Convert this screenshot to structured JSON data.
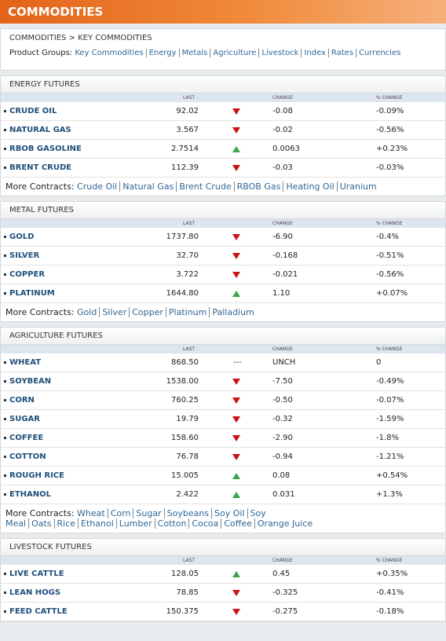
{
  "header": {
    "title": "COMMODITIES"
  },
  "breadcrumb": "COMMODITIES > KEY COMMODITIES",
  "product_groups": {
    "label": "Product Groups:",
    "links": [
      "Key Commodities",
      "Energy",
      "Metals",
      "Agriculture",
      "Livestock",
      "Index",
      "Rates",
      "Currencies"
    ]
  },
  "sections": [
    {
      "title": "ENERGY FUTURES",
      "columns": [
        "LAST",
        "CHANGE",
        "% CHANGE"
      ],
      "rows": [
        {
          "name": "CRUDE OIL",
          "last": "92.02",
          "arrow": "down",
          "change": "-0.08",
          "pct": "-0.09%"
        },
        {
          "name": "NATURAL GAS",
          "last": "3.567",
          "arrow": "down",
          "change": "-0.02",
          "pct": "-0.56%"
        },
        {
          "name": "RBOB GASOLINE",
          "last": "2.7514",
          "arrow": "up",
          "change": "0.0063",
          "pct": "+0.23%"
        },
        {
          "name": "BRENT CRUDE",
          "last": "112.39",
          "arrow": "down",
          "change": "-0.03",
          "pct": "-0.03%"
        }
      ],
      "more_label": "More Contracts:",
      "more_links": [
        "Crude Oil",
        "Natural Gas",
        "Brent Crude",
        "RBOB Gas",
        "Heating Oil",
        "Uranium"
      ]
    },
    {
      "title": "METAL FUTURES",
      "columns": [
        "LAST",
        "CHANGE",
        "% CHANGE"
      ],
      "rows": [
        {
          "name": "GOLD",
          "last": "1737.80",
          "arrow": "down",
          "change": "-6.90",
          "pct": "-0.4%"
        },
        {
          "name": "SILVER",
          "last": "32.70",
          "arrow": "down",
          "change": "-0.168",
          "pct": "-0.51%"
        },
        {
          "name": "COPPER",
          "last": "3.722",
          "arrow": "down",
          "change": "-0.021",
          "pct": "-0.56%"
        },
        {
          "name": "PLATINUM",
          "last": "1644.80",
          "arrow": "up",
          "change": "1.10",
          "pct": "+0.07%"
        }
      ],
      "more_label": "More Contracts:",
      "more_links": [
        "Gold",
        "Silver",
        "Copper",
        "Platinum",
        "Palladium"
      ]
    },
    {
      "title": "AGRICULTURE FUTURES",
      "columns": [
        "LAST",
        "CHANGE",
        "% CHANGE"
      ],
      "rows": [
        {
          "name": "WHEAT",
          "last": "868.50",
          "arrow": "---",
          "change": "UNCH",
          "pct": "0"
        },
        {
          "name": "SOYBEAN",
          "last": "1538.00",
          "arrow": "down",
          "change": "-7.50",
          "pct": "-0.49%"
        },
        {
          "name": "CORN",
          "last": "760.25",
          "arrow": "down",
          "change": "-0.50",
          "pct": "-0.07%"
        },
        {
          "name": "SUGAR",
          "last": "19.79",
          "arrow": "down",
          "change": "-0.32",
          "pct": "-1.59%"
        },
        {
          "name": "COFFEE",
          "last": "158.60",
          "arrow": "down",
          "change": "-2.90",
          "pct": "-1.8%"
        },
        {
          "name": "COTTON",
          "last": "76.78",
          "arrow": "down",
          "change": "-0.94",
          "pct": "-1.21%"
        },
        {
          "name": "ROUGH RICE",
          "last": "15.005",
          "arrow": "up",
          "change": "0.08",
          "pct": "+0.54%"
        },
        {
          "name": "ETHANOL",
          "last": "2.422",
          "arrow": "up",
          "change": "0.031",
          "pct": "+1.3%"
        }
      ],
      "more_label": "More Contracts:",
      "more_links": [
        "Wheat",
        "Corn",
        "Sugar",
        "Soybeans",
        "Soy Oil",
        "Soy Meal",
        "Oats",
        "Rice",
        "Ethanol",
        "Lumber",
        "Cotton",
        "Cocoa",
        "Coffee",
        "Orange Juice"
      ]
    },
    {
      "title": "LIVESTOCK FUTURES",
      "columns": [
        "LAST",
        "CHANGE",
        "% CHANGE"
      ],
      "rows": [
        {
          "name": "LIVE CATTLE",
          "last": "128.05",
          "arrow": "up",
          "change": "0.45",
          "pct": "+0.35%"
        },
        {
          "name": "LEAN HOGS",
          "last": "78.85",
          "arrow": "down",
          "change": "-0.325",
          "pct": "-0.41%"
        },
        {
          "name": "FEED CATTLE",
          "last": "150.375",
          "arrow": "down",
          "change": "-0.275",
          "pct": "-0.18%"
        }
      ]
    }
  ]
}
